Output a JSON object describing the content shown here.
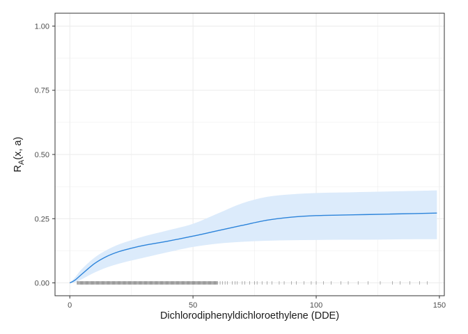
{
  "chart_data": {
    "type": "line",
    "xlabel": "Dichlorodiphenyldichloroethylene (DDE)",
    "ylabel": {
      "main": "R",
      "sub": "A",
      "rest": "(x, a)"
    },
    "xlim": [
      -6,
      152
    ],
    "ylim": [
      -0.05,
      1.05
    ],
    "x_ticks": [
      0,
      50,
      100,
      150
    ],
    "y_ticks": [
      0.0,
      0.25,
      0.5,
      0.75,
      1.0
    ],
    "x_tick_labels": [
      "0",
      "50",
      "100",
      "150"
    ],
    "y_tick_labels": [
      "0.00",
      "0.25",
      "0.50",
      "0.75",
      "1.00"
    ],
    "grid": true,
    "colors": {
      "line": "#2B83DA",
      "band": "#DCEBFB",
      "rug": "#000000",
      "grid": "#EBEBEB",
      "panel_border": "#333333"
    },
    "series": [
      {
        "x": [
          0,
          2,
          5,
          10,
          15,
          20,
          25,
          30,
          40,
          50,
          60,
          70,
          80,
          90,
          100,
          110,
          120,
          130,
          140,
          149
        ],
        "y": [
          0.0,
          0.01,
          0.035,
          0.075,
          0.103,
          0.122,
          0.135,
          0.146,
          0.163,
          0.182,
          0.203,
          0.224,
          0.244,
          0.256,
          0.262,
          0.264,
          0.266,
          0.268,
          0.27,
          0.272
        ],
        "lower": [
          0.0,
          0.002,
          0.015,
          0.04,
          0.06,
          0.075,
          0.087,
          0.098,
          0.12,
          0.14,
          0.153,
          0.16,
          0.164,
          0.166,
          0.167,
          0.168,
          0.168,
          0.169,
          0.17,
          0.17
        ],
        "upper": [
          0.0,
          0.02,
          0.055,
          0.098,
          0.128,
          0.15,
          0.166,
          0.181,
          0.205,
          0.23,
          0.27,
          0.31,
          0.335,
          0.345,
          0.35,
          0.352,
          0.354,
          0.356,
          0.358,
          0.36
        ]
      }
    ],
    "rug_dense_range": [
      3,
      60
    ],
    "rug_sparse": [
      61,
      62,
      63,
      64,
      66,
      67,
      68,
      70,
      71,
      73,
      75,
      76,
      78,
      80,
      82,
      85,
      87,
      90,
      92,
      95,
      98,
      100,
      103,
      106,
      110,
      113,
      117,
      121,
      126,
      131,
      134,
      138,
      142,
      145
    ]
  }
}
